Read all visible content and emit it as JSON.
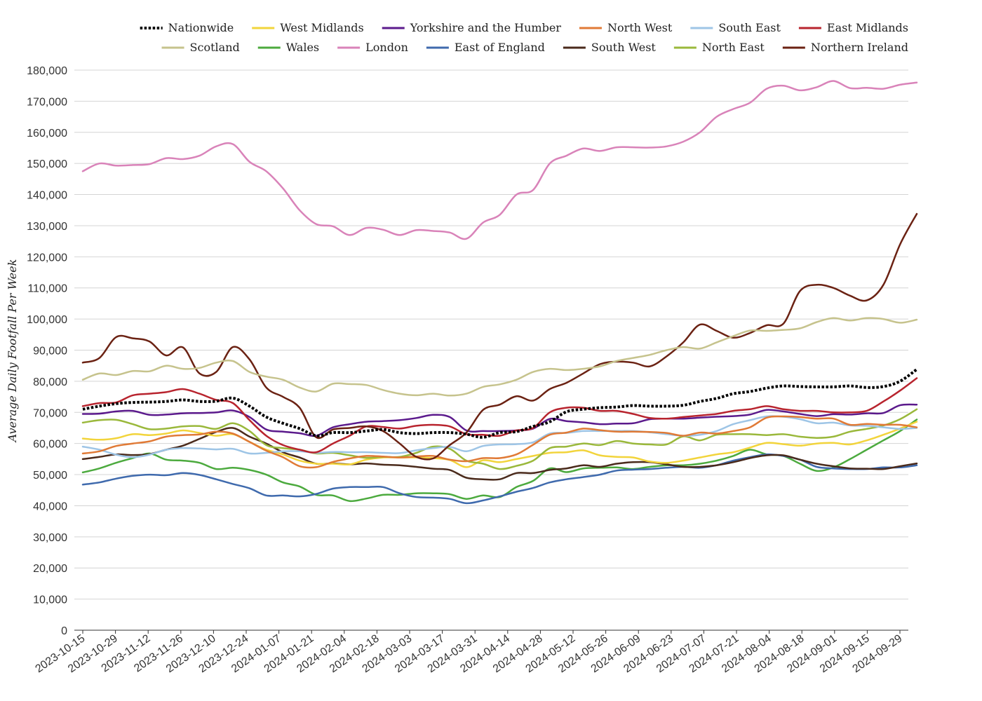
{
  "chart_data": {
    "type": "line",
    "title": "",
    "xlabel": "",
    "ylabel": "Average Daily Footfall Per Week",
    "ylim": [
      0,
      180000
    ],
    "yticks": [
      0,
      10000,
      20000,
      30000,
      40000,
      50000,
      60000,
      70000,
      80000,
      90000,
      100000,
      110000,
      120000,
      130000,
      140000,
      150000,
      160000,
      170000,
      180000
    ],
    "ytick_labels": [
      "0",
      "10,000",
      "20,000",
      "30,000",
      "40,000",
      "50,000",
      "60,000",
      "70,000",
      "80,000",
      "90,000",
      "100,000",
      "110,000",
      "120,000",
      "130,000",
      "140,000",
      "150,000",
      "160,000",
      "170,000",
      "180,000"
    ],
    "grid": true,
    "legend_position": "top",
    "x_tick_labels": [
      "2023-10-15",
      "2023-10-29",
      "2023-11-12",
      "2023-11-26",
      "2023-12-10",
      "2023-12-24",
      "2024-01-07",
      "2024-01-21",
      "2024-02-04",
      "2024-02-18",
      "2024-03-03",
      "2024-03-17",
      "2024-03-31",
      "2024-04-14",
      "2024-04-28",
      "2024-05-12",
      "2024-05-26",
      "2024-06-09",
      "2024-06-23",
      "2024-07-07",
      "2024-07-21",
      "2024-08-04",
      "2024-08-18",
      "2024-09-01",
      "2024-09-15",
      "2024-09-29"
    ],
    "series": [
      {
        "name": "London",
        "color": "#d983b9",
        "dashed": false,
        "values": [
          147500,
          150000,
          149300,
          149500,
          149800,
          151700,
          151400,
          152500,
          155500,
          156200,
          150500,
          147500,
          142000,
          135000,
          130500,
          129800,
          127000,
          129300,
          128700,
          127000,
          128600,
          128300,
          127800,
          125800,
          131000,
          133500,
          140000,
          141500,
          150000,
          152500,
          154800,
          154000,
          155200,
          155200,
          155100,
          155500,
          157000,
          160000,
          165000,
          167500,
          169500,
          174000,
          175000,
          173500,
          174500,
          176500,
          174200,
          174300,
          174000,
          175300,
          176000
        ]
      },
      {
        "name": "Scotland",
        "color": "#c6c38d",
        "dashed": false,
        "values": [
          80500,
          82500,
          82000,
          83300,
          83200,
          85000,
          84000,
          84300,
          86000,
          86500,
          83000,
          81500,
          80500,
          78000,
          76700,
          79200,
          79100,
          78800,
          77200,
          76000,
          75500,
          76000,
          75400,
          76000,
          78200,
          79000,
          80500,
          83000,
          84000,
          83600,
          84000,
          84800,
          86500,
          87500,
          88500,
          90000,
          91000,
          90500,
          92500,
          94500,
          96300,
          96200,
          96500,
          97000,
          99000,
          100300,
          99500,
          100300,
          100000,
          98800,
          99800
        ]
      },
      {
        "name": "Northern Ireland",
        "color": "#6b2213",
        "dashed": false,
        "values": [
          86000,
          87500,
          94200,
          93800,
          92800,
          88300,
          90900,
          82500,
          83000,
          91000,
          87000,
          78000,
          75000,
          71500,
          62000,
          64500,
          65000,
          65500,
          64000,
          60000,
          55700,
          55200,
          59500,
          63500,
          70800,
          72500,
          75200,
          73800,
          77500,
          79500,
          82500,
          85500,
          86300,
          86000,
          84800,
          88000,
          92500,
          98200,
          96200,
          94000,
          95500,
          98000,
          98500,
          109000,
          111000,
          110000,
          107500,
          106000,
          111000,
          124000,
          133800
        ]
      },
      {
        "name": "Nationwide",
        "color": "#000000",
        "dashed": true,
        "values": [
          71000,
          72000,
          72800,
          73200,
          73300,
          73500,
          74000,
          73500,
          73600,
          74600,
          72000,
          68500,
          66500,
          64800,
          62500,
          63500,
          63500,
          64000,
          64500,
          63500,
          63200,
          63500,
          63500,
          63000,
          62000,
          63500,
          63800,
          65500,
          67000,
          70200,
          71000,
          71500,
          71700,
          72200,
          72000,
          72000,
          72300,
          73500,
          74500,
          76000,
          76700,
          77800,
          78500,
          78300,
          78200,
          78200,
          78500,
          78000,
          78300,
          80000,
          83800
        ]
      },
      {
        "name": "East Midlands",
        "color": "#b8242e",
        "dashed": false,
        "values": [
          72000,
          73000,
          73200,
          75500,
          76000,
          76500,
          77500,
          76000,
          74000,
          73000,
          67500,
          62500,
          59500,
          58000,
          57200,
          60000,
          62500,
          65500,
          65300,
          64800,
          65700,
          66000,
          65500,
          63000,
          62800,
          62500,
          64200,
          65000,
          70000,
          71500,
          71500,
          70500,
          70500,
          69500,
          68200,
          68000,
          68500,
          69000,
          69500,
          70500,
          71000,
          72000,
          71000,
          70500,
          70500,
          70000,
          70000,
          70500,
          73500,
          77000,
          81000
        ]
      },
      {
        "name": "Yorkshire and the Humber",
        "color": "#5b1a8c",
        "dashed": false,
        "values": [
          69500,
          69600,
          70300,
          70500,
          69200,
          69300,
          69700,
          69800,
          70000,
          70600,
          68500,
          64500,
          63800,
          63300,
          62500,
          65200,
          66200,
          67000,
          67200,
          67500,
          68200,
          69200,
          68500,
          64200,
          64000,
          64000,
          64200,
          64800,
          67900,
          67200,
          66800,
          66200,
          66400,
          66500,
          67800,
          68000,
          68000,
          68300,
          68600,
          68800,
          69300,
          70800,
          70300,
          69500,
          68800,
          69400,
          69300,
          69700,
          69800,
          72300,
          72500
        ]
      },
      {
        "name": "North West",
        "color": "#e07a36",
        "dashed": false,
        "values": [
          56800,
          57500,
          59200,
          60000,
          60700,
          62200,
          62700,
          62900,
          63800,
          63200,
          60500,
          57700,
          55600,
          52700,
          52400,
          54100,
          55200,
          56000,
          55800,
          55500,
          55800,
          56000,
          54800,
          54300,
          55300,
          55300,
          56500,
          59600,
          62800,
          63500,
          64800,
          64300,
          63800,
          63800,
          63700,
          63400,
          62500,
          63500,
          63200,
          64000,
          65200,
          68300,
          68700,
          68500,
          68000,
          68000,
          66000,
          66300,
          66000,
          66000,
          65200
        ]
      },
      {
        "name": "South East",
        "color": "#9ec5e6",
        "dashed": false,
        "values": [
          59000,
          58000,
          56400,
          55600,
          56400,
          58000,
          58500,
          58400,
          58100,
          58300,
          56800,
          57000,
          57500,
          57500,
          57000,
          57300,
          57200,
          57200,
          57000,
          56900,
          57800,
          58500,
          58900,
          57500,
          59200,
          59700,
          59800,
          60400,
          63200,
          63400,
          64000,
          64000,
          64000,
          64000,
          63600,
          63000,
          62500,
          62800,
          64000,
          66200,
          67500,
          68700,
          68600,
          67800,
          66500,
          66700,
          65800,
          65700,
          65200,
          64700,
          65000
        ]
      },
      {
        "name": "North East",
        "color": "#9ab83b",
        "dashed": false,
        "values": [
          66700,
          67500,
          67600,
          66200,
          64600,
          64800,
          65500,
          65600,
          64700,
          66500,
          64000,
          59500,
          58500,
          58000,
          56800,
          57000,
          56200,
          55400,
          55700,
          55700,
          57000,
          59000,
          58300,
          54500,
          53500,
          51800,
          52800,
          54500,
          58500,
          59000,
          60000,
          59500,
          60800,
          60000,
          59700,
          59700,
          62300,
          61000,
          62800,
          63000,
          63000,
          62700,
          63000,
          62200,
          61800,
          62200,
          63800,
          64700,
          65800,
          67800,
          71000
        ]
      },
      {
        "name": "West Midlands",
        "color": "#f2d43b",
        "dashed": false,
        "values": [
          61600,
          61200,
          61700,
          63000,
          62700,
          63200,
          64200,
          63400,
          62500,
          63000,
          60500,
          58000,
          56500,
          54500,
          53500,
          53500,
          53300,
          54800,
          55500,
          55500,
          55500,
          55300,
          54700,
          52400,
          54600,
          54000,
          55000,
          56000,
          57000,
          57200,
          57800,
          56200,
          55700,
          55500,
          54200,
          53800,
          54500,
          55500,
          56500,
          57200,
          58700,
          60200,
          59800,
          59300,
          60000,
          60200,
          59700,
          61000,
          62800,
          64800,
          67000
        ]
      },
      {
        "name": "South West",
        "color": "#4a2a1b",
        "dashed": false,
        "values": [
          55000,
          55700,
          56500,
          56300,
          56600,
          58000,
          59300,
          61500,
          63700,
          65000,
          62200,
          60000,
          57200,
          55500,
          53500,
          53600,
          53300,
          53600,
          53200,
          53000,
          52500,
          51900,
          51500,
          49000,
          48500,
          48500,
          50500,
          50500,
          51500,
          52000,
          53000,
          52500,
          53500,
          54000,
          54000,
          53300,
          52500,
          52500,
          53000,
          54000,
          55300,
          56200,
          56200,
          54800,
          53500,
          52700,
          52000,
          51900,
          51800,
          52700,
          53600
        ]
      },
      {
        "name": "East of England",
        "color": "#3f6aad",
        "dashed": false,
        "values": [
          46800,
          47500,
          48700,
          49600,
          50000,
          49800,
          50500,
          49900,
          48500,
          47000,
          45600,
          43300,
          43300,
          43000,
          43800,
          45500,
          46000,
          46000,
          46000,
          44000,
          42800,
          42600,
          42200,
          40800,
          41700,
          43000,
          44500,
          45700,
          47500,
          48500,
          49200,
          50000,
          51300,
          51600,
          51800,
          52200,
          52500,
          52200,
          53000,
          54500,
          55600,
          56500,
          56000,
          54800,
          52500,
          52000,
          51800,
          51800,
          52300,
          52300,
          53000
        ]
      },
      {
        "name": "Wales",
        "color": "#4caa3e",
        "dashed": false,
        "values": [
          50700,
          52000,
          53800,
          55300,
          56800,
          54800,
          54500,
          53800,
          51800,
          52200,
          51500,
          50000,
          47500,
          46200,
          43500,
          43300,
          41500,
          42300,
          43500,
          43500,
          44000,
          44000,
          43700,
          42200,
          43300,
          42800,
          46000,
          48000,
          52000,
          50800,
          52000,
          52200,
          52300,
          51800,
          52500,
          53000,
          53000,
          53500,
          54500,
          56000,
          58000,
          56500,
          56000,
          53500,
          51200,
          52300,
          55000,
          58000,
          61000,
          64000,
          67700
        ]
      }
    ],
    "legend_rows": [
      [
        "Nationwide",
        "West Midlands",
        "Yorkshire and the Humber",
        "North West",
        "South East",
        "East Midlands"
      ],
      [
        "Scotland",
        "Wales",
        "London",
        "East of England",
        "South West",
        "North East",
        "Northern Ireland"
      ]
    ]
  }
}
